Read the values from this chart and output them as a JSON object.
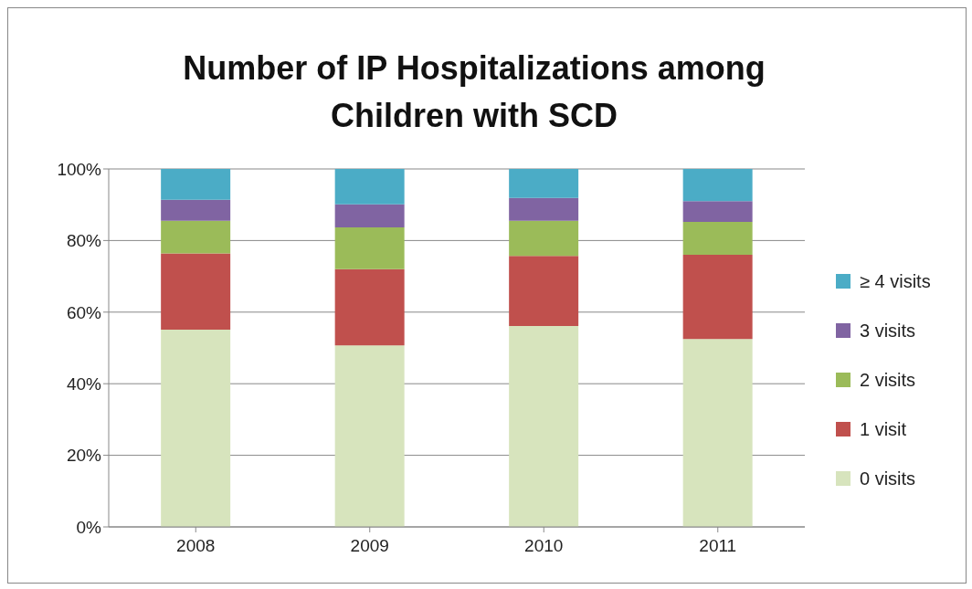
{
  "chart_data": {
    "type": "bar",
    "stacked": true,
    "title": "Number of IP Hospitalizations among Children with SCD",
    "categories": [
      "2008",
      "2009",
      "2010",
      "2011"
    ],
    "series": [
      {
        "name": "0 visits",
        "color": "#d7e4bd",
        "values": [
          55.1,
          50.7,
          56.1,
          52.5
        ]
      },
      {
        "name": "1 visit",
        "color": "#c0504d",
        "values": [
          21.3,
          21.3,
          19.6,
          23.5
        ]
      },
      {
        "name": "2 visits",
        "color": "#9bbb59",
        "values": [
          9.1,
          11.7,
          9.8,
          9.2
        ]
      },
      {
        "name": "3 visits",
        "color": "#8064a2",
        "values": [
          5.9,
          6.4,
          6.4,
          5.8
        ]
      },
      {
        "name": "≥ 4 visits",
        "color": "#4bacc6",
        "values": [
          8.6,
          9.9,
          8.1,
          9.0
        ]
      }
    ],
    "ylim": [
      0,
      100
    ],
    "yticks": [
      {
        "value": 0,
        "label": "0%"
      },
      {
        "value": 20,
        "label": "20%"
      },
      {
        "value": 40,
        "label": "40%"
      },
      {
        "value": 60,
        "label": "60%"
      },
      {
        "value": 80,
        "label": "80%"
      },
      {
        "value": 100,
        "label": "100%"
      }
    ],
    "grid": "y",
    "legend": "right"
  }
}
